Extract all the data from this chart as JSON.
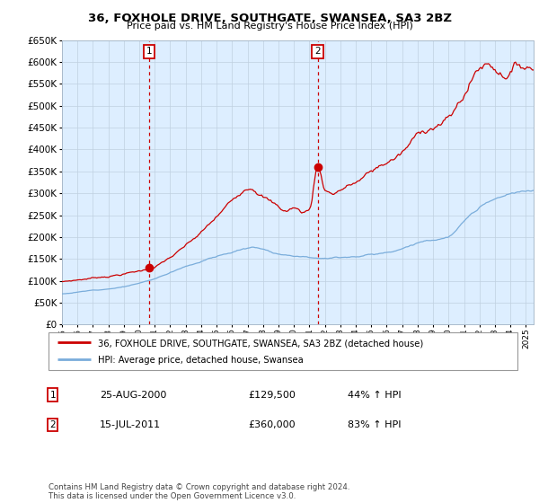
{
  "title": "36, FOXHOLE DRIVE, SOUTHGATE, SWANSEA, SA3 2BZ",
  "subtitle": "Price paid vs. HM Land Registry's House Price Index (HPI)",
  "legend_line1": "36, FOXHOLE DRIVE, SOUTHGATE, SWANSEA, SA3 2BZ (detached house)",
  "legend_line2": "HPI: Average price, detached house, Swansea",
  "annotation1_date": "25-AUG-2000",
  "annotation1_price": "£129,500",
  "annotation1_hpi": "44% ↑ HPI",
  "annotation2_date": "15-JUL-2011",
  "annotation2_price": "£360,000",
  "annotation2_hpi": "83% ↑ HPI",
  "footnote": "Contains HM Land Registry data © Crown copyright and database right 2024.\nThis data is licensed under the Open Government Licence v3.0.",
  "sale1_year": 2000.646,
  "sale1_value": 129500,
  "sale2_year": 2011.538,
  "sale2_value": 360000,
  "line_color_red": "#cc0000",
  "line_color_blue": "#7aaddb",
  "bg_color": "#ddeeff",
  "grid_color": "#c0d0e0",
  "ylim_min": 0,
  "ylim_max": 650000,
  "xlim_min": 1995.0,
  "xlim_max": 2025.5
}
